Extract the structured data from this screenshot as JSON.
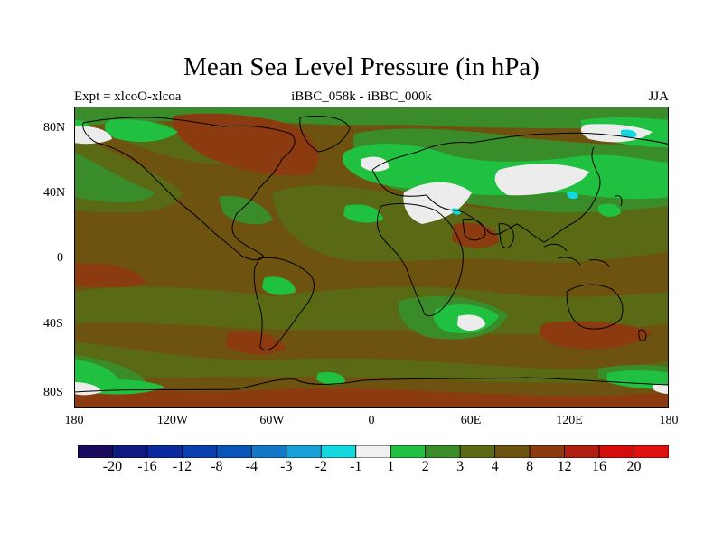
{
  "title": "Mean Sea Level Pressure (in hPa)",
  "subtitle_left": "Expt = xlcoO-xlcoa",
  "subtitle_center": "iBBC_058k - iBBC_000k",
  "subtitle_right": "JJA",
  "lat_labels": [
    "80N",
    "40N",
    "0",
    "40S",
    "80S"
  ],
  "lon_labels": [
    "180",
    "120W",
    "60W",
    "0",
    "60E",
    "120E",
    "180"
  ],
  "colorbar": {
    "labels": [
      "-20",
      "-16",
      "-12",
      "-8",
      "-4",
      "-3",
      "-2",
      "-1",
      "1",
      "2",
      "3",
      "4",
      "8",
      "12",
      "16",
      "20"
    ],
    "colors": [
      "#1a0a5e",
      "#0d1a80",
      "#0a2aa0",
      "#0a3fb0",
      "#0a56b8",
      "#1478c8",
      "#1aa0d8",
      "#14d8e0",
      "#f0f0f0",
      "#20c040",
      "#3a8c2a",
      "#5a6a14",
      "#6e5210",
      "#8c3a10",
      "#b01e10",
      "#d40c0c",
      "#e01010"
    ]
  },
  "palette": {
    "map_background": "#6e5210",
    "neutral": "#ececec",
    "green_light": "#20c040",
    "green_mid": "#3a8c2a",
    "olive": "#5a6a14",
    "brown": "#6e5210",
    "rust": "#8c3a10",
    "cyan": "#14d8e0",
    "coastline": "#000000"
  }
}
